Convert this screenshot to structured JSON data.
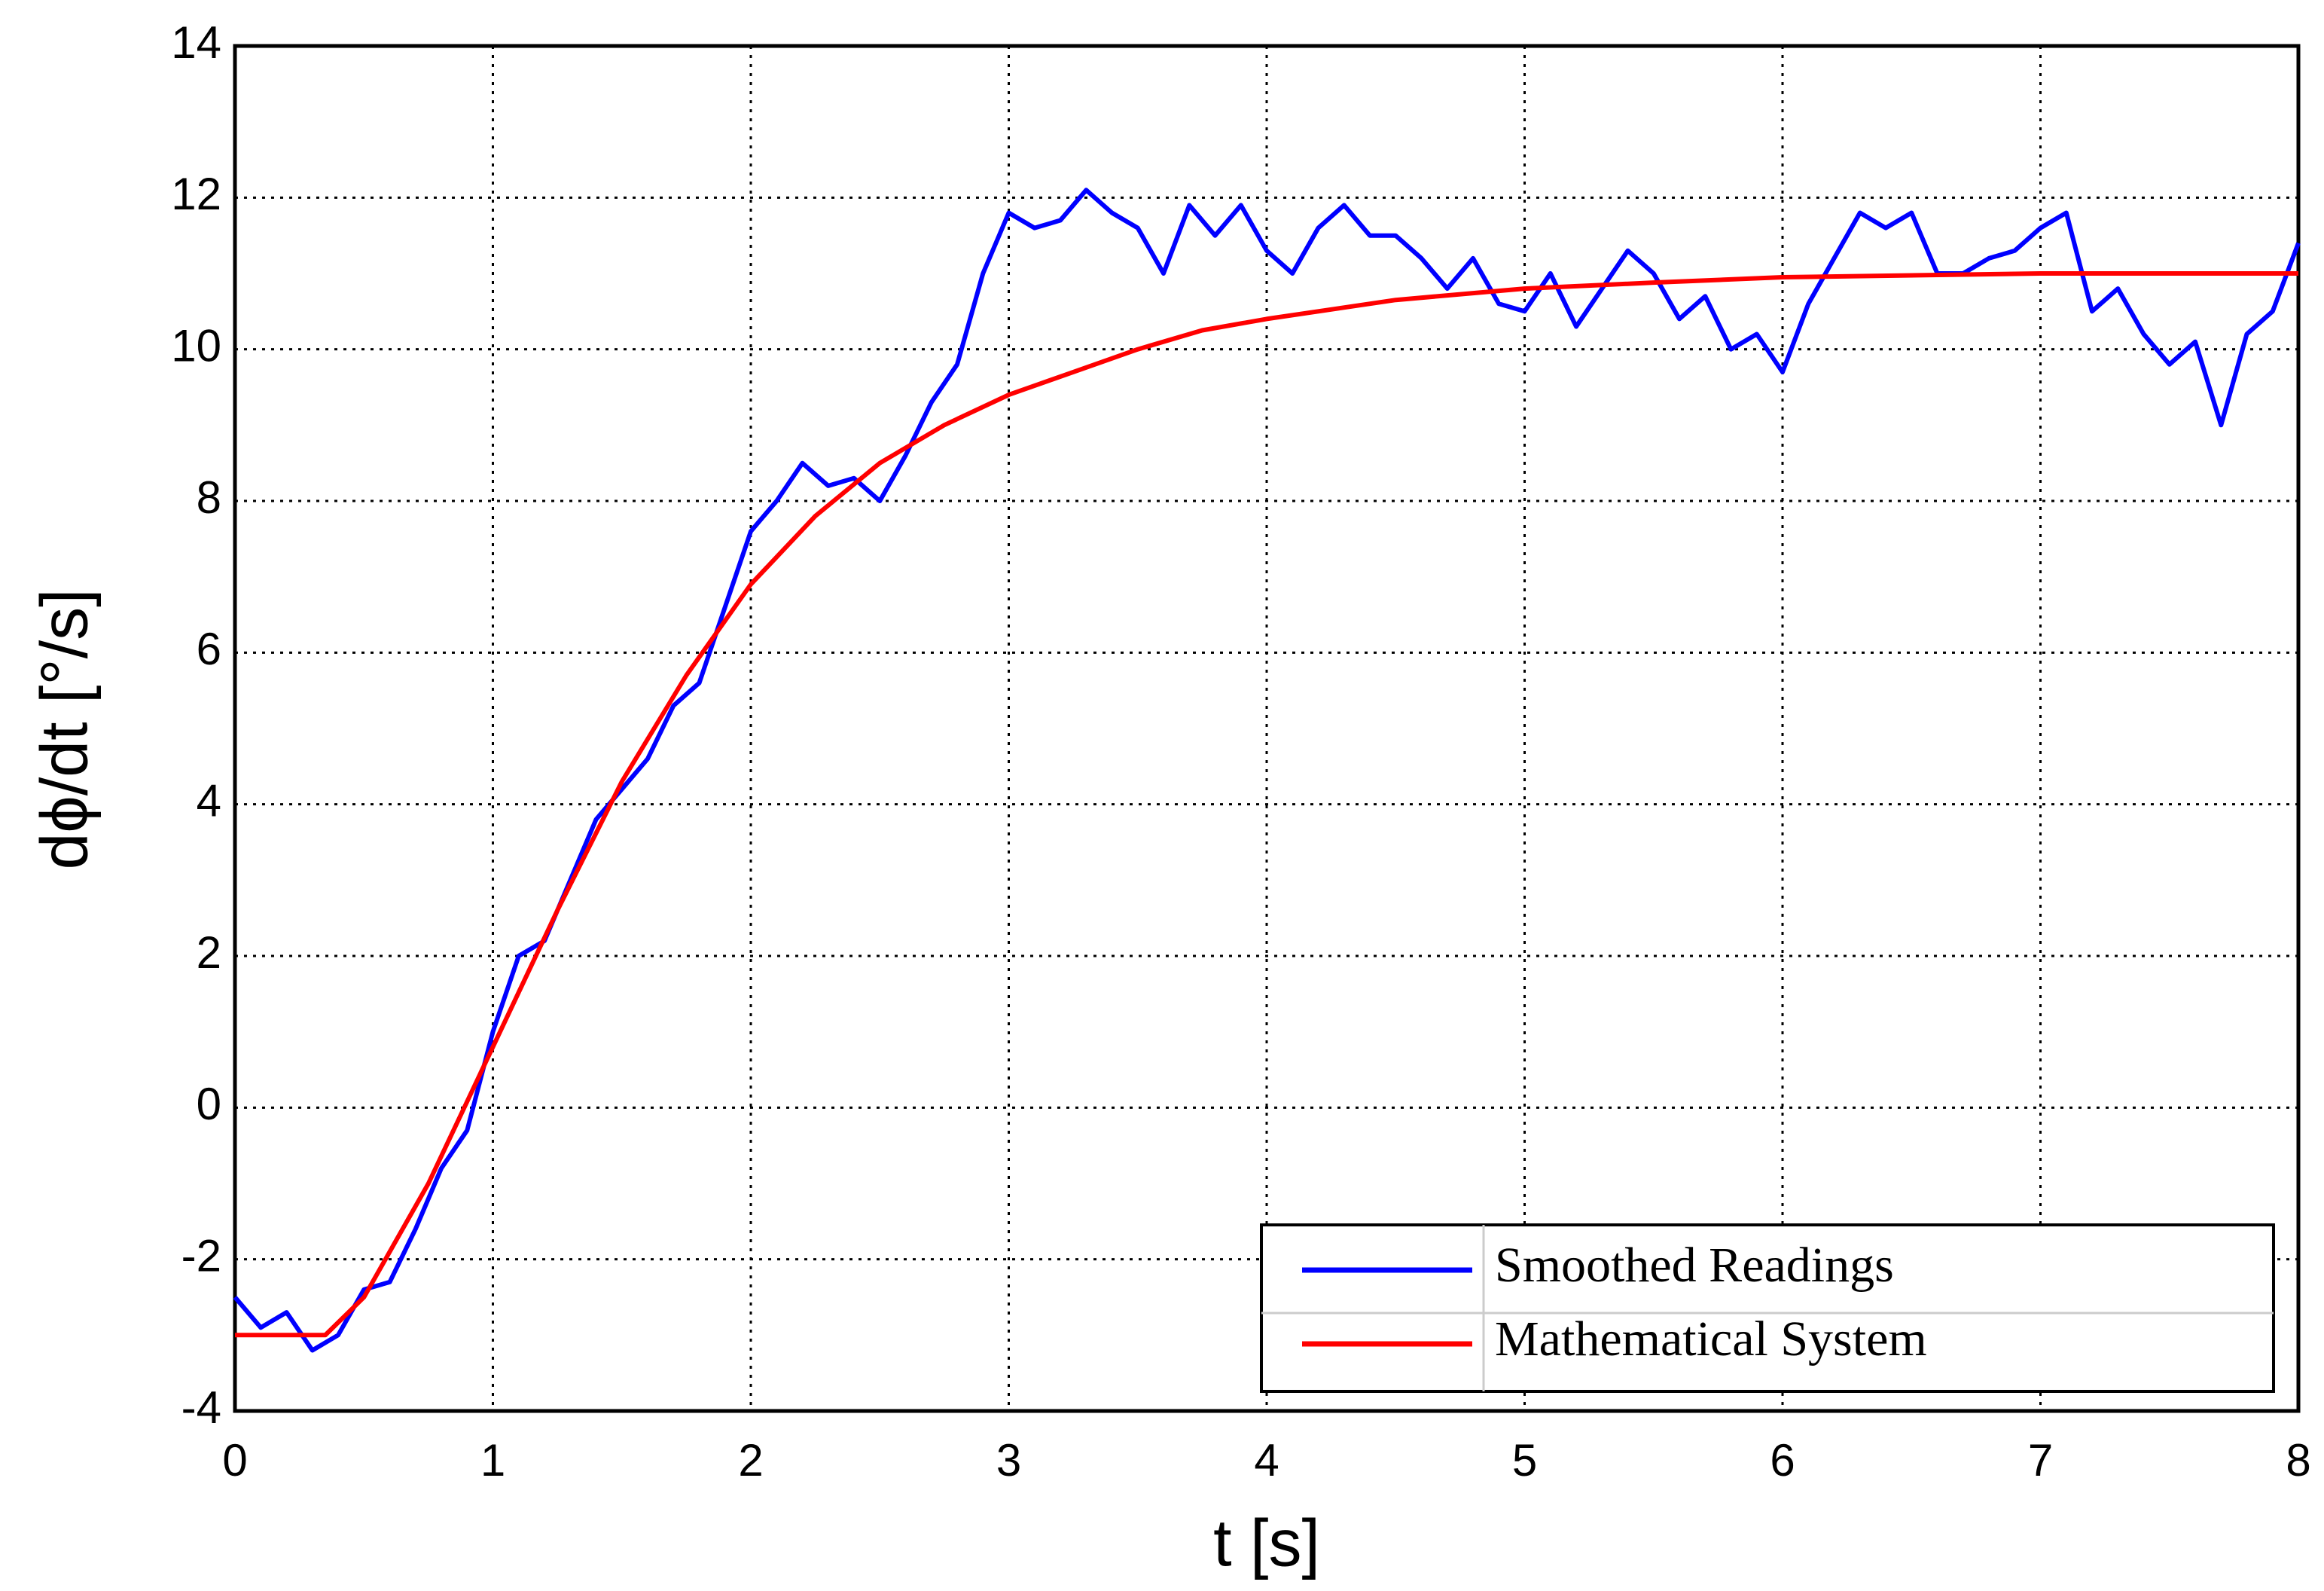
{
  "chart_data": {
    "type": "line",
    "x_label": "t [s]",
    "y_label": "dϕ/dt [°/s]",
    "xlim": [
      0,
      8
    ],
    "xticks": [
      0,
      1,
      2,
      3,
      4,
      5,
      6,
      7,
      8
    ],
    "ylim": [
      -4,
      14
    ],
    "yticks": [
      -4,
      -2,
      0,
      2,
      4,
      6,
      8,
      10,
      12,
      14
    ],
    "grid": true,
    "legend": "lower right",
    "series": [
      {
        "name": "Smoothed Readings",
        "color": "#0000ff",
        "x": [
          0,
          0.1,
          0.2,
          0.3,
          0.4,
          0.5,
          0.6,
          0.7,
          0.8,
          0.9,
          1,
          1.1,
          1.2,
          1.3,
          1.4,
          1.5,
          1.6,
          1.7,
          1.8,
          1.9,
          2,
          2.1,
          2.2,
          2.3,
          2.4,
          2.5,
          2.6,
          2.7,
          2.8,
          2.9,
          3,
          3.1,
          3.2,
          3.3,
          3.4,
          3.5,
          3.6,
          3.7,
          3.8,
          3.9,
          4,
          4.1,
          4.2,
          4.3,
          4.4,
          4.5,
          4.6,
          4.7,
          4.8,
          4.9,
          5,
          5.1,
          5.2,
          5.3,
          5.4,
          5.5,
          5.6,
          5.7,
          5.8,
          5.9,
          6,
          6.1,
          6.2,
          6.3,
          6.4,
          6.5,
          6.6,
          6.7,
          6.8,
          6.9,
          7,
          7.1,
          7.2,
          7.3,
          7.4,
          7.5,
          7.6,
          7.7,
          7.8,
          7.9,
          8
        ],
        "values": [
          -2.5,
          -2.9,
          -2.7,
          -3.2,
          -3.0,
          -2.4,
          -2.3,
          -1.6,
          -0.8,
          -0.3,
          1.0,
          2.0,
          2.2,
          3.0,
          3.8,
          4.2,
          4.6,
          5.3,
          5.6,
          6.6,
          7.6,
          8.0,
          8.5,
          8.2,
          8.3,
          8.0,
          8.6,
          9.3,
          9.8,
          11.0,
          11.8,
          11.6,
          11.7,
          12.1,
          11.8,
          11.6,
          11.0,
          11.9,
          11.5,
          11.9,
          11.3,
          11.0,
          11.6,
          11.9,
          11.5,
          11.5,
          11.2,
          10.8,
          11.2,
          10.6,
          10.5,
          11.0,
          10.3,
          10.8,
          11.3,
          11.0,
          10.4,
          10.7,
          10.0,
          10.2,
          9.7,
          10.6,
          11.2,
          11.8,
          11.6,
          11.8,
          11.0,
          11.0,
          11.2,
          11.3,
          11.6,
          11.8,
          10.5,
          10.8,
          10.2,
          9.8,
          10.1,
          9.0,
          10.2,
          10.5,
          11.4
        ]
      },
      {
        "name": "Mathematical System",
        "color": "#ff0000",
        "x": [
          0,
          0.35,
          0.5,
          0.75,
          1,
          1.25,
          1.5,
          1.75,
          2,
          2.25,
          2.5,
          2.75,
          3,
          3.25,
          3.5,
          3.75,
          4,
          4.5,
          5,
          5.5,
          6,
          7,
          8
        ],
        "values": [
          -3,
          -3,
          -2.5,
          -1,
          0.8,
          2.6,
          4.3,
          5.7,
          6.9,
          7.8,
          8.5,
          9.0,
          9.4,
          9.7,
          10.0,
          10.25,
          10.4,
          10.65,
          10.8,
          10.88,
          10.95,
          11,
          11
        ]
      }
    ]
  }
}
